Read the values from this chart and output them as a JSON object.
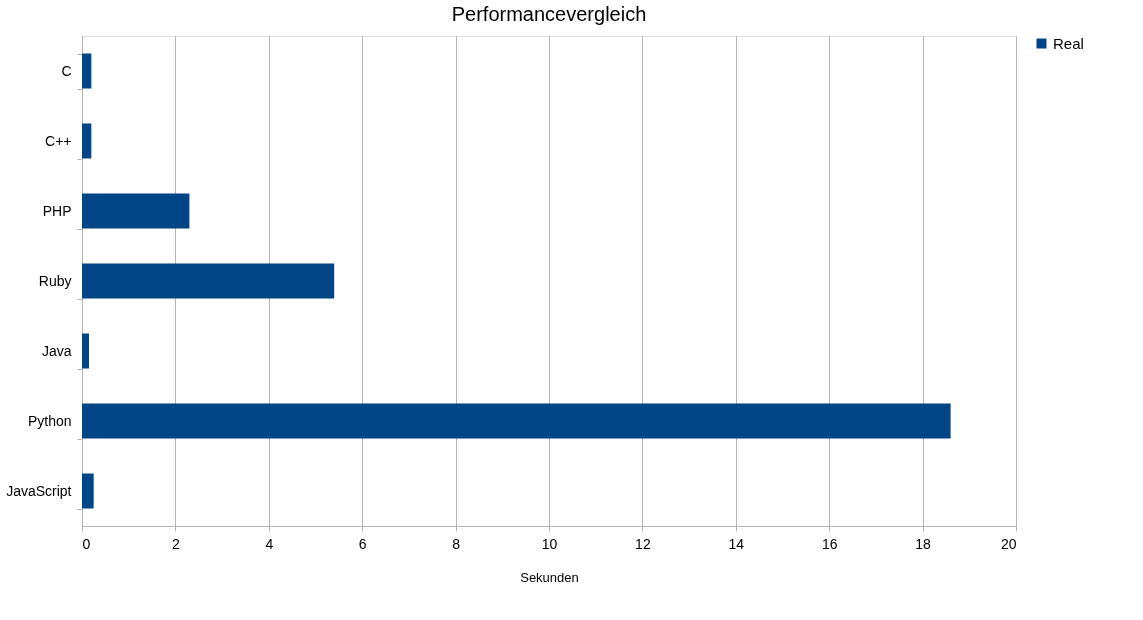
{
  "chart_data": {
    "type": "bar",
    "orientation": "horizontal",
    "title": "Performancevergleich",
    "xlabel": "Sekunden",
    "categories": [
      "C",
      "C++",
      "PHP",
      "Ruby",
      "Java",
      "Python",
      "JavaScript"
    ],
    "series": [
      {
        "name": "Real",
        "color": "#004586",
        "values": [
          0.2,
          0.2,
          2.3,
          5.4,
          0.15,
          18.6,
          0.25
        ]
      }
    ],
    "xlim": [
      0,
      20
    ],
    "xticks": [
      0,
      2,
      4,
      6,
      8,
      10,
      12,
      14,
      16,
      18,
      20
    ],
    "grid": "x",
    "legend": "right"
  }
}
